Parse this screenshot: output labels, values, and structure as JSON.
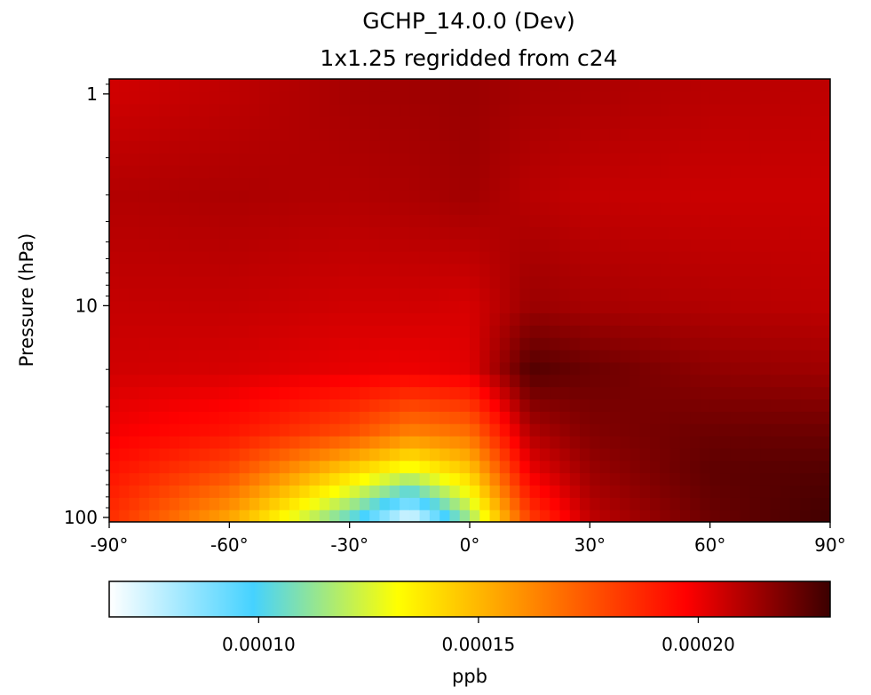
{
  "chart_data": {
    "type": "heatmap",
    "title_line1": "GCHP_14.0.0 (Dev)",
    "title_line2": "1x1.25 regridded from c24",
    "xlabel": "",
    "ylabel": "Pressure (hPa)",
    "xlim": [
      -90,
      90
    ],
    "ylim_hpa": [
      105,
      0.85
    ],
    "y_scale": "log",
    "x_ticks": [
      {
        "value": -90,
        "label": "-90°"
      },
      {
        "value": -60,
        "label": "-60°"
      },
      {
        "value": -30,
        "label": "-30°"
      },
      {
        "value": 0,
        "label": "0°"
      },
      {
        "value": 30,
        "label": "30°"
      },
      {
        "value": 60,
        "label": "60°"
      },
      {
        "value": 90,
        "label": "90°"
      }
    ],
    "y_ticks": [
      {
        "value": 1,
        "label": "1"
      },
      {
        "value": 10,
        "label": "10"
      },
      {
        "value": 100,
        "label": "100"
      }
    ],
    "colorbar": {
      "label": "ppb",
      "vmin": 6.6e-05,
      "vmax": 0.00023,
      "ticks": [
        {
          "value": 0.0001,
          "label": "0.00010"
        },
        {
          "value": 0.00015,
          "label": "0.00015"
        },
        {
          "value": 0.0002,
          "label": "0.00020"
        }
      ],
      "colormap": [
        "#ffffff",
        "#45d2ff",
        "#ffff00",
        "#ff7f00",
        "#ff0000",
        "#3b0000"
      ]
    },
    "description_keypoints": {
      "lat": [
        -90,
        -60,
        -30,
        -15,
        0,
        15,
        30,
        60,
        90
      ],
      "pressure_hpa": [
        1,
        3,
        10,
        20,
        40,
        60,
        100
      ],
      "values_ppb": [
        [
          0.000205,
          0.000208,
          0.000212,
          0.000213,
          0.000214,
          0.000212,
          0.000211,
          0.000209,
          0.000208
        ],
        [
          0.00021,
          0.000211,
          0.00021,
          0.000211,
          0.000213,
          0.000209,
          0.000207,
          0.000206,
          0.000206
        ],
        [
          0.000207,
          0.000207,
          0.000205,
          0.000205,
          0.000204,
          0.000214,
          0.000212,
          0.00021,
          0.000208
        ],
        [
          0.000205,
          0.000204,
          0.000201,
          0.0002,
          0.000202,
          0.000226,
          0.000222,
          0.000216,
          0.000213
        ],
        [
          0.000199,
          0.000192,
          0.000177,
          0.000163,
          0.000168,
          0.00021,
          0.000218,
          0.000222,
          0.000222
        ],
        [
          0.000193,
          0.000178,
          0.000143,
          0.000127,
          0.000145,
          0.0002,
          0.000214,
          0.000224,
          0.000226
        ],
        [
          0.000186,
          0.000155,
          0.000105,
          7.2e-05,
          0.000115,
          0.000182,
          0.000208,
          0.000222,
          0.000229
        ]
      ]
    }
  }
}
